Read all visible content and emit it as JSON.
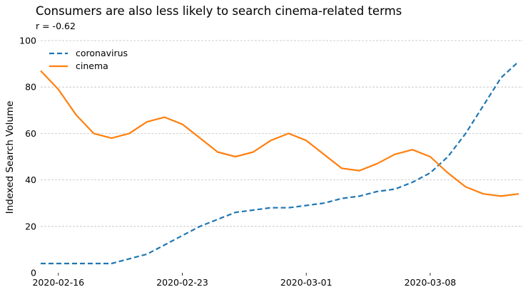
{
  "chart_data": {
    "type": "line",
    "title": "Consumers are also less likely to search cinema-related terms",
    "subtitle": "r = -0.62",
    "xlabel": "",
    "ylabel": "Indexed Search Volume",
    "ylim": [
      0,
      100
    ],
    "yticks": [
      0,
      20,
      40,
      60,
      80,
      100
    ],
    "x": [
      "2020-02-15",
      "2020-02-16",
      "2020-02-17",
      "2020-02-18",
      "2020-02-19",
      "2020-02-20",
      "2020-02-21",
      "2020-02-22",
      "2020-02-23",
      "2020-02-24",
      "2020-02-25",
      "2020-02-26",
      "2020-02-27",
      "2020-02-28",
      "2020-02-29",
      "2020-03-01",
      "2020-03-02",
      "2020-03-03",
      "2020-03-04",
      "2020-03-05",
      "2020-03-06",
      "2020-03-07",
      "2020-03-08",
      "2020-03-09",
      "2020-03-10",
      "2020-03-11",
      "2020-03-12",
      "2020-03-13"
    ],
    "xticks": [
      "2020-02-16",
      "2020-02-23",
      "2020-03-01",
      "2020-03-08"
    ],
    "grid": "horizontal dashed",
    "legend": "top-left",
    "series": [
      {
        "name": "coronavirus",
        "color": "#1f77b4",
        "style": "dashed",
        "values": [
          4,
          4,
          4,
          4,
          4,
          6,
          8,
          12,
          16,
          20,
          23,
          26,
          27,
          28,
          28,
          29,
          30,
          32,
          33,
          35,
          36,
          39,
          43,
          50,
          60,
          72,
          84,
          91
        ]
      },
      {
        "name": "cinema",
        "color": "#ff7f0e",
        "style": "solid",
        "values": [
          87,
          79,
          68,
          60,
          58,
          60,
          65,
          67,
          64,
          58,
          52,
          50,
          52,
          57,
          60,
          57,
          51,
          45,
          44,
          47,
          51,
          53,
          50,
          43,
          37,
          34,
          33,
          34
        ]
      }
    ]
  }
}
